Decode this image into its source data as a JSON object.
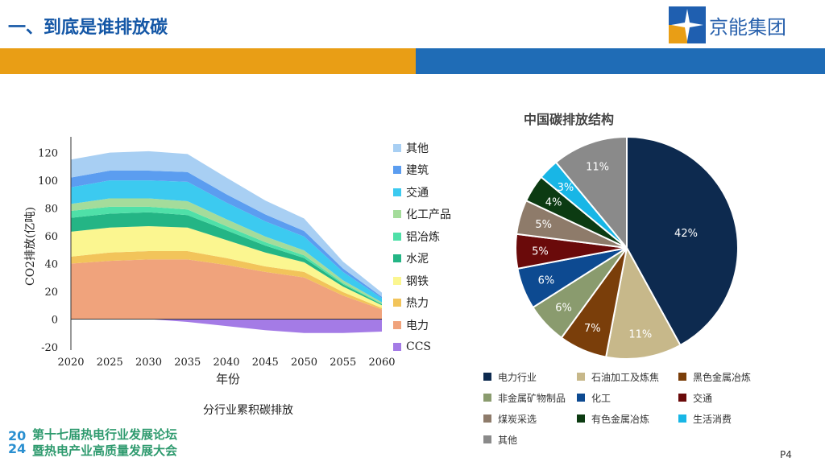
{
  "header": {
    "title": "一、到底是谁排放碳",
    "logo_text": "京能集团"
  },
  "chart_data": [
    {
      "type": "area",
      "title": "分行业累积碳排放",
      "xlabel": "年份",
      "ylabel": "CO2排放(亿吨)",
      "x": [
        2020,
        2025,
        2030,
        2035,
        2040,
        2045,
        2050,
        2055,
        2060
      ],
      "xticks": [
        "2020",
        "2025",
        "2030",
        "2035",
        "2040",
        "2045",
        "2050",
        "2055",
        "2060"
      ],
      "yticks": [
        "120",
        "100",
        "80",
        "60",
        "40",
        "20",
        "0",
        "-20"
      ],
      "ylim": [
        -20,
        125
      ],
      "series": [
        {
          "name": "电力",
          "color": "#f0a37c",
          "values": [
            40,
            42,
            43,
            43,
            39,
            34,
            30,
            17,
            7
          ]
        },
        {
          "name": "热力",
          "color": "#f2c45a",
          "values": [
            5,
            6,
            6,
            6,
            5,
            4,
            4,
            2.5,
            1
          ]
        },
        {
          "name": "钢铁",
          "color": "#fbf690",
          "values": [
            18,
            18,
            18,
            17,
            13,
            10,
            7,
            4,
            2
          ]
        },
        {
          "name": "水泥",
          "color": "#24b585",
          "values": [
            10,
            10,
            10,
            9,
            7,
            5,
            3,
            1.5,
            0.7
          ]
        },
        {
          "name": "铝冶炼",
          "color": "#4fe0a8",
          "values": [
            5,
            5,
            4,
            4,
            3,
            2.5,
            2,
            1,
            0.4
          ]
        },
        {
          "name": "化工产品",
          "color": "#a4dc9b",
          "values": [
            5,
            6,
            6,
            6,
            5,
            4,
            3.5,
            2,
            1
          ]
        },
        {
          "name": "交通",
          "color": "#3ccaf0",
          "values": [
            12,
            13,
            13,
            14,
            12,
            11,
            10,
            6,
            3
          ]
        },
        {
          "name": "建筑",
          "color": "#5b9df0",
          "values": [
            7,
            7,
            7,
            7,
            6,
            5,
            4,
            2.5,
            1
          ]
        },
        {
          "name": "其他",
          "color": "#a8cff3",
          "values": [
            13,
            13,
            14,
            13,
            12,
            10,
            9,
            5,
            3
          ]
        },
        {
          "name": "CCS",
          "color": "#a47be6",
          "values": [
            0,
            0,
            0,
            -2,
            -5,
            -8,
            -10,
            -10,
            -9
          ]
        }
      ]
    },
    {
      "type": "pie",
      "title": "中国碳排放结构",
      "series": [
        {
          "name": "电力行业",
          "value": 42,
          "label": "42%",
          "color": "#0d2a4f"
        },
        {
          "name": "石油加工及炼焦",
          "value": 11,
          "label": "11%",
          "color": "#c7b88a"
        },
        {
          "name": "黑色金属冶炼",
          "value": 7,
          "label": "7%",
          "color": "#7a3e0a"
        },
        {
          "name": "非金属矿物制品",
          "value": 6,
          "label": "6%",
          "color": "#8a9b6e"
        },
        {
          "name": "化工",
          "value": 6,
          "label": "6%",
          "color": "#0d4a91"
        },
        {
          "name": "交通",
          "value": 5,
          "label": "5%",
          "color": "#6a0a0a"
        },
        {
          "name": "煤炭采选",
          "value": 5,
          "label": "5%",
          "color": "#8e7b6a"
        },
        {
          "name": "有色金属冶炼",
          "value": 4,
          "label": "4%",
          "color": "#0c3b12"
        },
        {
          "name": "生活消费",
          "value": 3,
          "label": "3%",
          "color": "#18b6e6"
        },
        {
          "name": "其他",
          "value": 11,
          "label": "11%",
          "color": "#8a8a8a"
        }
      ]
    }
  ],
  "footer": {
    "year_mark": "2024",
    "line1": "第十七届热电行业发展论坛",
    "line2": "暨热电产业高质量发展大会"
  },
  "page": {
    "number": "P4"
  }
}
